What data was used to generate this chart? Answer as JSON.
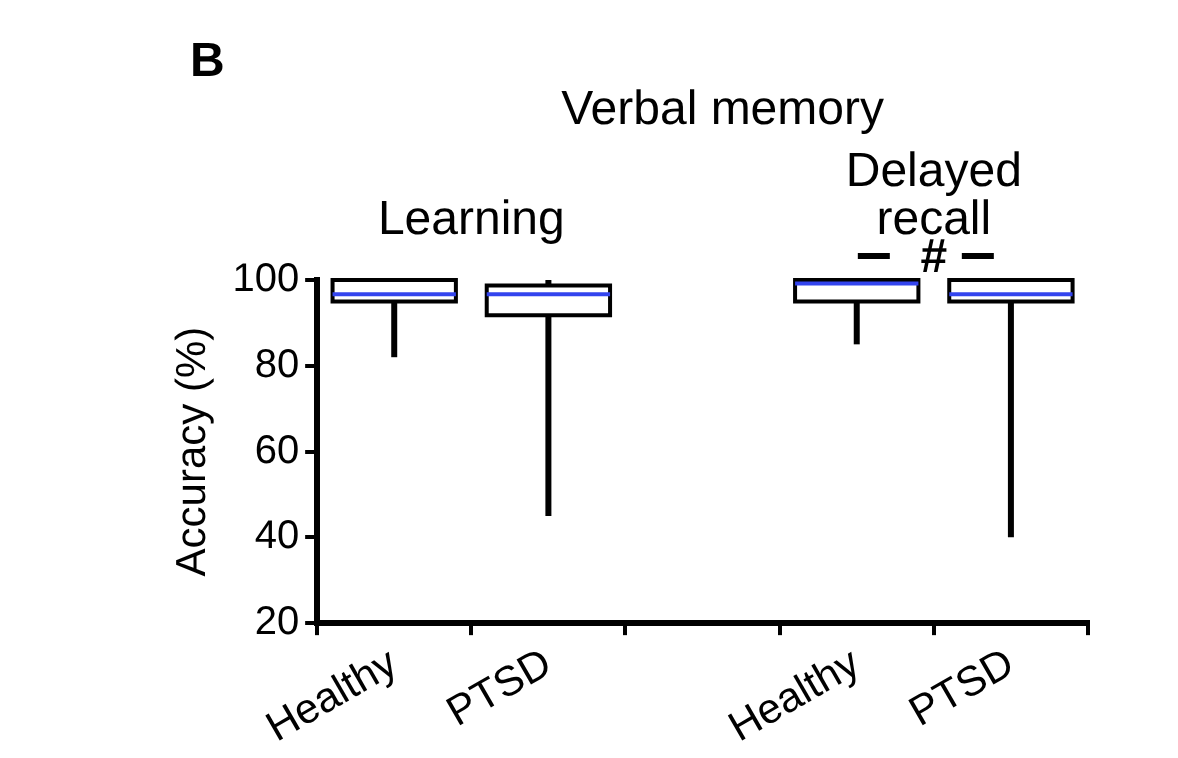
{
  "chart_data": {
    "type": "box",
    "title": "Verbal memory",
    "ylabel": "Accuracy (%)",
    "categories": [
      "Healthy",
      "PTSD",
      null,
      "Healthy",
      "PTSD"
    ],
    "series": [
      {
        "color": "#ffffff",
        "boxes": [
          {
            "low": 82,
            "q1": 95,
            "median": 96.7,
            "q3": 100,
            "high": 100
          },
          {
            "low": 45,
            "q1": 91.8,
            "median": 96.7,
            "q3": 98.7,
            "high": 100
          },
          null,
          {
            "low": 85,
            "q1": 95,
            "median": 99.2,
            "q3": 100,
            "high": 100
          },
          {
            "low": 40,
            "q1": 95,
            "median": 96.7,
            "q3": 100,
            "high": 100
          }
        ]
      }
    ],
    "ylim": [
      20,
      100
    ],
    "yticks": [
      20,
      40,
      60,
      80,
      100
    ],
    "grid": false,
    "legend": false,
    "annotations": [
      "B",
      "Learning",
      "Delayed recall",
      "#"
    ]
  }
}
